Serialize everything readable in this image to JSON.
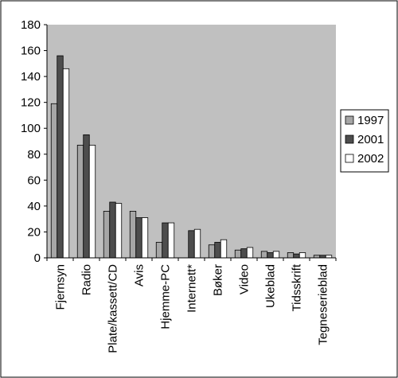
{
  "chart_data": {
    "type": "bar",
    "categories": [
      "Fjernsyn",
      "Radio",
      "Plate/kassett/CD",
      "Avis",
      "Hjemme-PC",
      "Internett*",
      "Bøker",
      "Video",
      "Ukeblad",
      "Tidsskrift",
      "Tegneserieblad"
    ],
    "series": [
      {
        "name": "1997",
        "color": "#a6a6a6",
        "values": [
          119,
          87,
          36,
          36,
          12,
          0,
          10,
          6,
          5,
          4,
          2
        ]
      },
      {
        "name": "2001",
        "color": "#4d4d4d",
        "values": [
          156,
          95,
          43,
          31,
          27,
          21,
          12,
          7,
          4,
          3,
          2
        ]
      },
      {
        "name": "2002",
        "color": "#ffffff",
        "values": [
          146,
          87,
          42,
          31,
          27,
          22,
          14,
          8,
          5,
          4,
          2
        ]
      }
    ],
    "yticks": [
      "0",
      "20",
      "40",
      "60",
      "80",
      "100",
      "120",
      "140",
      "160",
      "180"
    ],
    "ylim": [
      0,
      180
    ],
    "plot_background": "#c0c0c0",
    "grid": false,
    "legend_position": "right"
  }
}
